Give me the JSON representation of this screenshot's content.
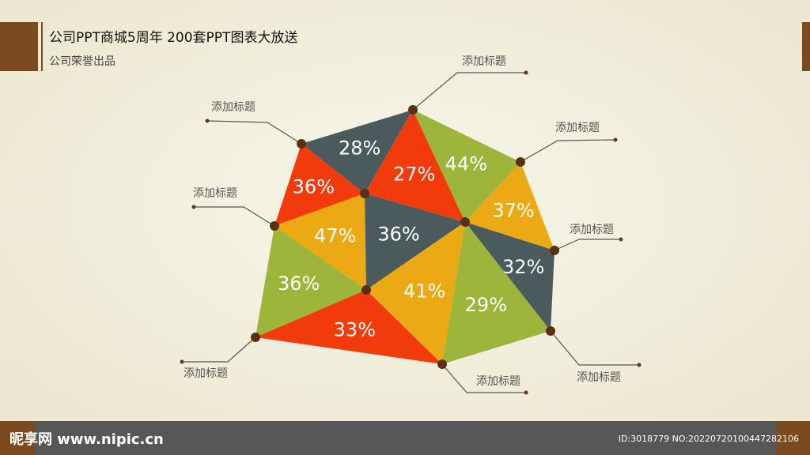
{
  "header": {
    "title": "公司PPT商城5周年  200套PPT图表大放送",
    "subtitle": "公司荣誉出品"
  },
  "segments": [
    {
      "label": "28%",
      "color": "#4b5a5c"
    },
    {
      "label": "36%",
      "color": "#f23b0c"
    },
    {
      "label": "27%",
      "color": "#f23b0c"
    },
    {
      "label": "44%",
      "color": "#9db53a"
    },
    {
      "label": "37%",
      "color": "#ebaa14"
    },
    {
      "label": "32%",
      "color": "#4b5a5c"
    },
    {
      "label": "47%",
      "color": "#ebaa14"
    },
    {
      "label": "36%",
      "color": "#4b5a5c"
    },
    {
      "label": "41%",
      "color": "#ebaa14"
    },
    {
      "label": "29%",
      "color": "#9db53a"
    },
    {
      "label": "36%",
      "color": "#9db53a"
    },
    {
      "label": "33%",
      "color": "#f23b0c"
    }
  ],
  "callouts": [
    "添加标题",
    "添加标题",
    "添加标题",
    "添加标题",
    "添加标题",
    "添加标题",
    "添加标题",
    "添加标题"
  ],
  "footer": {
    "watermark": "昵享网 www.nipic.cn",
    "id": "ID:3018779 NO:20220720100447282106"
  }
}
